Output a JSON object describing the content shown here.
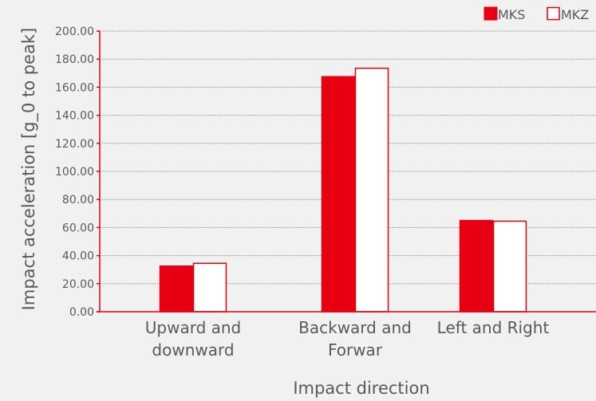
{
  "chart_data": {
    "type": "bar",
    "title": "",
    "xlabel": "Impact direction",
    "ylabel": "Impact acceleration [g_0 to peak]",
    "categories": [
      [
        "Upward and",
        "downward"
      ],
      [
        "Backward and",
        "Forwar"
      ],
      [
        "Left and Right"
      ]
    ],
    "series": [
      {
        "name": "MKS",
        "values": [
          32.5,
          167.5,
          65.0
        ],
        "fill": "#e60012",
        "stroke": "#e60012"
      },
      {
        "name": "MKZ",
        "values": [
          34.5,
          173.5,
          64.5
        ],
        "fill": "#ffffff",
        "stroke": "#e60012"
      }
    ],
    "ylim": [
      0,
      200
    ],
    "yticks": [
      "0.00",
      "20.00",
      "40.00",
      "60.00",
      "80.00",
      "100.00",
      "120.00",
      "140.00",
      "160.00",
      "180.00",
      "200.00"
    ],
    "ytick_values": [
      0,
      20,
      40,
      60,
      80,
      100,
      120,
      140,
      160,
      180,
      200
    ],
    "grid": true,
    "legend_position": "top-right",
    "colors": {
      "background": "#f1f1f1",
      "axis": "#e60012",
      "grid": "#8c8c8c",
      "text": "#595959"
    }
  }
}
